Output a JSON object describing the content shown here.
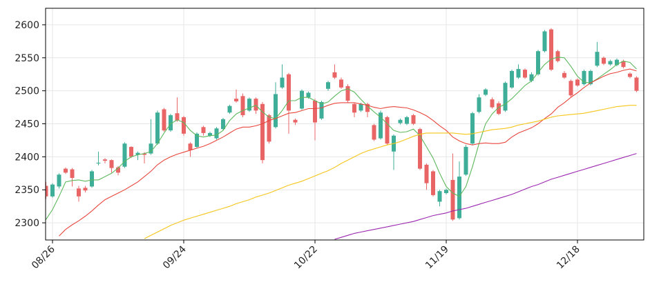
{
  "chart_data": {
    "type": "candlestick",
    "categories": [
      null,
      "08/26",
      null,
      null,
      null,
      null,
      null,
      null,
      null,
      null,
      null,
      null,
      null,
      null,
      null,
      null,
      null,
      null,
      null,
      null,
      null,
      "09/24",
      null,
      null,
      null,
      null,
      null,
      null,
      null,
      null,
      null,
      null,
      null,
      null,
      null,
      null,
      null,
      null,
      null,
      null,
      null,
      "10/22",
      null,
      null,
      null,
      null,
      null,
      null,
      null,
      null,
      null,
      null,
      null,
      null,
      null,
      null,
      null,
      null,
      null,
      null,
      null,
      "11/19",
      null,
      null,
      null,
      null,
      null,
      null,
      null,
      null,
      null,
      null,
      null,
      null,
      null,
      null,
      null,
      null,
      null,
      null,
      null,
      "12/18",
      null,
      null,
      null,
      null,
      null,
      null,
      null,
      null,
      null
    ],
    "open": [
      2356,
      2340,
      2355,
      2382,
      2381,
      2352,
      2353,
      2355,
      2390,
      2396,
      2395,
      2384,
      2385,
      2415,
      2403,
      2405,
      2405,
      2420,
      2472,
      2440,
      2466,
      2460,
      2420,
      2415,
      2445,
      2432,
      2428,
      2442,
      2467,
      2488,
      2492,
      2470,
      2488,
      2480,
      2463,
      2445,
      2505,
      2525,
      2456,
      2473,
      2490,
      2485,
      2458,
      2503,
      2528,
      2517,
      2507,
      2480,
      2470,
      2480,
      2448,
      2428,
      2460,
      2408,
      2451,
      2450,
      2463,
      2442,
      2388,
      2378,
      2332,
      2345,
      2365,
      2307,
      2373,
      2420,
      2468,
      2494,
      2487,
      2481,
      2470,
      2505,
      2520,
      2532,
      2515,
      2525,
      2560,
      2593,
      2560,
      2527,
      2515,
      2517,
      2510,
      2510,
      2538,
      2550,
      2540,
      2539,
      2545,
      2526,
      2520
    ],
    "high": [
      2362,
      2360,
      2375,
      2384,
      2383,
      2356,
      2356,
      2380,
      2408,
      2398,
      2396,
      2386,
      2422,
      2416,
      2408,
      2407,
      2457,
      2470,
      2474,
      2465,
      2490,
      2462,
      2422,
      2437,
      2447,
      2438,
      2445,
      2459,
      2479,
      2502,
      2496,
      2490,
      2490,
      2483,
      2465,
      2513,
      2540,
      2527,
      2458,
      2502,
      2499,
      2488,
      2485,
      2515,
      2540,
      2520,
      2510,
      2482,
      2482,
      2482,
      2450,
      2470,
      2462,
      2434,
      2458,
      2462,
      2465,
      2444,
      2390,
      2380,
      2350,
      2352,
      2405,
      2393,
      2418,
      2468,
      2495,
      2504,
      2490,
      2484,
      2514,
      2532,
      2540,
      2534,
      2528,
      2562,
      2592,
      2595,
      2562,
      2530,
      2517,
      2519,
      2532,
      2532,
      2574,
      2552,
      2547,
      2549,
      2547,
      2528,
      2522
    ],
    "low": [
      2336,
      2338,
      2352,
      2374,
      2355,
      2332,
      2346,
      2353,
      2387,
      2390,
      2376,
      2372,
      2383,
      2398,
      2395,
      2390,
      2403,
      2418,
      2438,
      2438,
      2453,
      2432,
      2400,
      2413,
      2432,
      2430,
      2426,
      2440,
      2465,
      2482,
      2460,
      2468,
      2465,
      2390,
      2420,
      2443,
      2503,
      2435,
      2448,
      2471,
      2488,
      2425,
      2456,
      2500,
      2518,
      2503,
      2482,
      2460,
      2468,
      2460,
      2424,
      2426,
      2418,
      2380,
      2449,
      2448,
      2448,
      2380,
      2350,
      2340,
      2325,
      2343,
      2303,
      2305,
      2371,
      2418,
      2466,
      2492,
      2473,
      2463,
      2468,
      2503,
      2518,
      2518,
      2513,
      2523,
      2558,
      2530,
      2543,
      2518,
      2490,
      2506,
      2508,
      2508,
      2536,
      2539,
      2538,
      2537,
      2534,
      2519,
      2498
    ],
    "close": [
      2340,
      2358,
      2373,
      2376,
      2368,
      2340,
      2349,
      2378,
      2391,
      2394,
      2383,
      2376,
      2420,
      2400,
      2406,
      2403,
      2420,
      2467,
      2440,
      2463,
      2455,
      2435,
      2410,
      2435,
      2436,
      2436,
      2443,
      2457,
      2477,
      2484,
      2463,
      2488,
      2470,
      2395,
      2423,
      2495,
      2520,
      2470,
      2452,
      2500,
      2497,
      2452,
      2483,
      2513,
      2520,
      2505,
      2485,
      2467,
      2480,
      2468,
      2426,
      2467,
      2420,
      2432,
      2456,
      2460,
      2450,
      2382,
      2360,
      2342,
      2348,
      2350,
      2305,
      2370,
      2415,
      2466,
      2490,
      2502,
      2475,
      2465,
      2512,
      2530,
      2533,
      2520,
      2525,
      2560,
      2590,
      2532,
      2545,
      2520,
      2493,
      2508,
      2530,
      2530,
      2559,
      2541,
      2545,
      2547,
      2536,
      2521,
      2500
    ],
    "up_color": "#3fae98",
    "down_color": "#e96565",
    "series": [
      {
        "color": "#5cb85c",
        "values": [
          2305,
          2320,
          2340,
          2362,
          2364,
          2365,
          2363,
          2365,
          2365,
          2370,
          2375,
          2383,
          2393,
          2400,
          2403,
          2405,
          2408,
          2420,
          2436,
          2450,
          2456,
          2452,
          2440,
          2432,
          2430,
          2432,
          2433,
          2440,
          2455,
          2465,
          2470,
          2474,
          2478,
          2468,
          2460,
          2458,
          2470,
          2485,
          2485,
          2490,
          2490,
          2485,
          2480,
          2483,
          2492,
          2500,
          2503,
          2498,
          2487,
          2477,
          2468,
          2460,
          2450,
          2440,
          2437,
          2438,
          2442,
          2432,
          2415,
          2398,
          2375,
          2355,
          2345,
          2340,
          2355,
          2385,
          2420,
          2450,
          2465,
          2475,
          2480,
          2488,
          2498,
          2508,
          2515,
          2528,
          2540,
          2548,
          2551,
          2550,
          2537,
          2522,
          2513,
          2512,
          2518,
          2525,
          2532,
          2540,
          2545,
          2543,
          2533
        ]
      },
      {
        "color": "#e8463c",
        "values": [
          null,
          null,
          2280,
          2290,
          2297,
          2303,
          2310,
          2318,
          2327,
          2335,
          2340,
          2345,
          2350,
          2356,
          2362,
          2370,
          2378,
          2388,
          2395,
          2400,
          2404,
          2407,
          2410,
          2413,
          2416,
          2420,
          2425,
          2430,
          2436,
          2442,
          2445,
          2445,
          2447,
          2450,
          2455,
          2458,
          2462,
          2466,
          2467,
          2470,
          2473,
          2473,
          2474,
          2478,
          2481,
          2482,
          2482,
          2482,
          2480,
          2478,
          2475,
          2473,
          2475,
          2476,
          2475,
          2474,
          2471,
          2467,
          2462,
          2455,
          2447,
          2440,
          2430,
          2424,
          2420,
          2418,
          2420,
          2421,
          2420,
          2420,
          2422,
          2430,
          2436,
          2440,
          2444,
          2450,
          2458,
          2465,
          2475,
          2482,
          2490,
          2497,
          2505,
          2512,
          2517,
          2522,
          2526,
          2528,
          2531,
          2533,
          2530
        ]
      },
      {
        "color": "#f5c518",
        "values": [
          null,
          null,
          null,
          null,
          null,
          null,
          null,
          null,
          null,
          null,
          null,
          null,
          null,
          null,
          null,
          2276,
          2281,
          2286,
          2291,
          2296,
          2300,
          2304,
          2307,
          2310,
          2313,
          2316,
          2319,
          2322,
          2325,
          2329,
          2332,
          2335,
          2339,
          2342,
          2345,
          2349,
          2353,
          2357,
          2360,
          2363,
          2367,
          2371,
          2375,
          2379,
          2384,
          2390,
          2395,
          2400,
          2405,
          2409,
          2412,
          2415,
          2418,
          2420,
          2423,
          2427,
          2431,
          2434,
          2436,
          2436,
          2436,
          2436,
          2436,
          2435,
          2434,
          2435,
          2437,
          2439,
          2441,
          2442,
          2443,
          2445,
          2448,
          2450,
          2452,
          2454,
          2457,
          2460,
          2462,
          2463,
          2464,
          2465,
          2466,
          2468,
          2470,
          2472,
          2474,
          2476,
          2477,
          2478,
          2478
        ]
      },
      {
        "color": "#9c27b0",
        "values": [
          null,
          null,
          null,
          null,
          null,
          null,
          null,
          null,
          null,
          null,
          null,
          null,
          null,
          null,
          null,
          null,
          null,
          null,
          null,
          null,
          null,
          null,
          null,
          null,
          null,
          null,
          null,
          null,
          null,
          null,
          null,
          null,
          null,
          null,
          null,
          null,
          null,
          null,
          null,
          null,
          null,
          null,
          null,
          null,
          2275,
          2278,
          2281,
          2284,
          2286,
          2288,
          2290,
          2292,
          2294,
          2296,
          2298,
          2300,
          2302,
          2305,
          2308,
          2311,
          2313,
          2315,
          2318,
          2320,
          2322,
          2325,
          2328,
          2331,
          2334,
          2337,
          2340,
          2343,
          2347,
          2351,
          2355,
          2358,
          2362,
          2366,
          2369,
          2372,
          2375,
          2378,
          2381,
          2384,
          2387,
          2390,
          2393,
          2396,
          2399,
          2402,
          2405
        ]
      }
    ],
    "ylim": [
      2274,
      2625
    ],
    "yticks": [
      2300,
      2350,
      2400,
      2450,
      2500,
      2550,
      2600
    ],
    "grid": true
  }
}
